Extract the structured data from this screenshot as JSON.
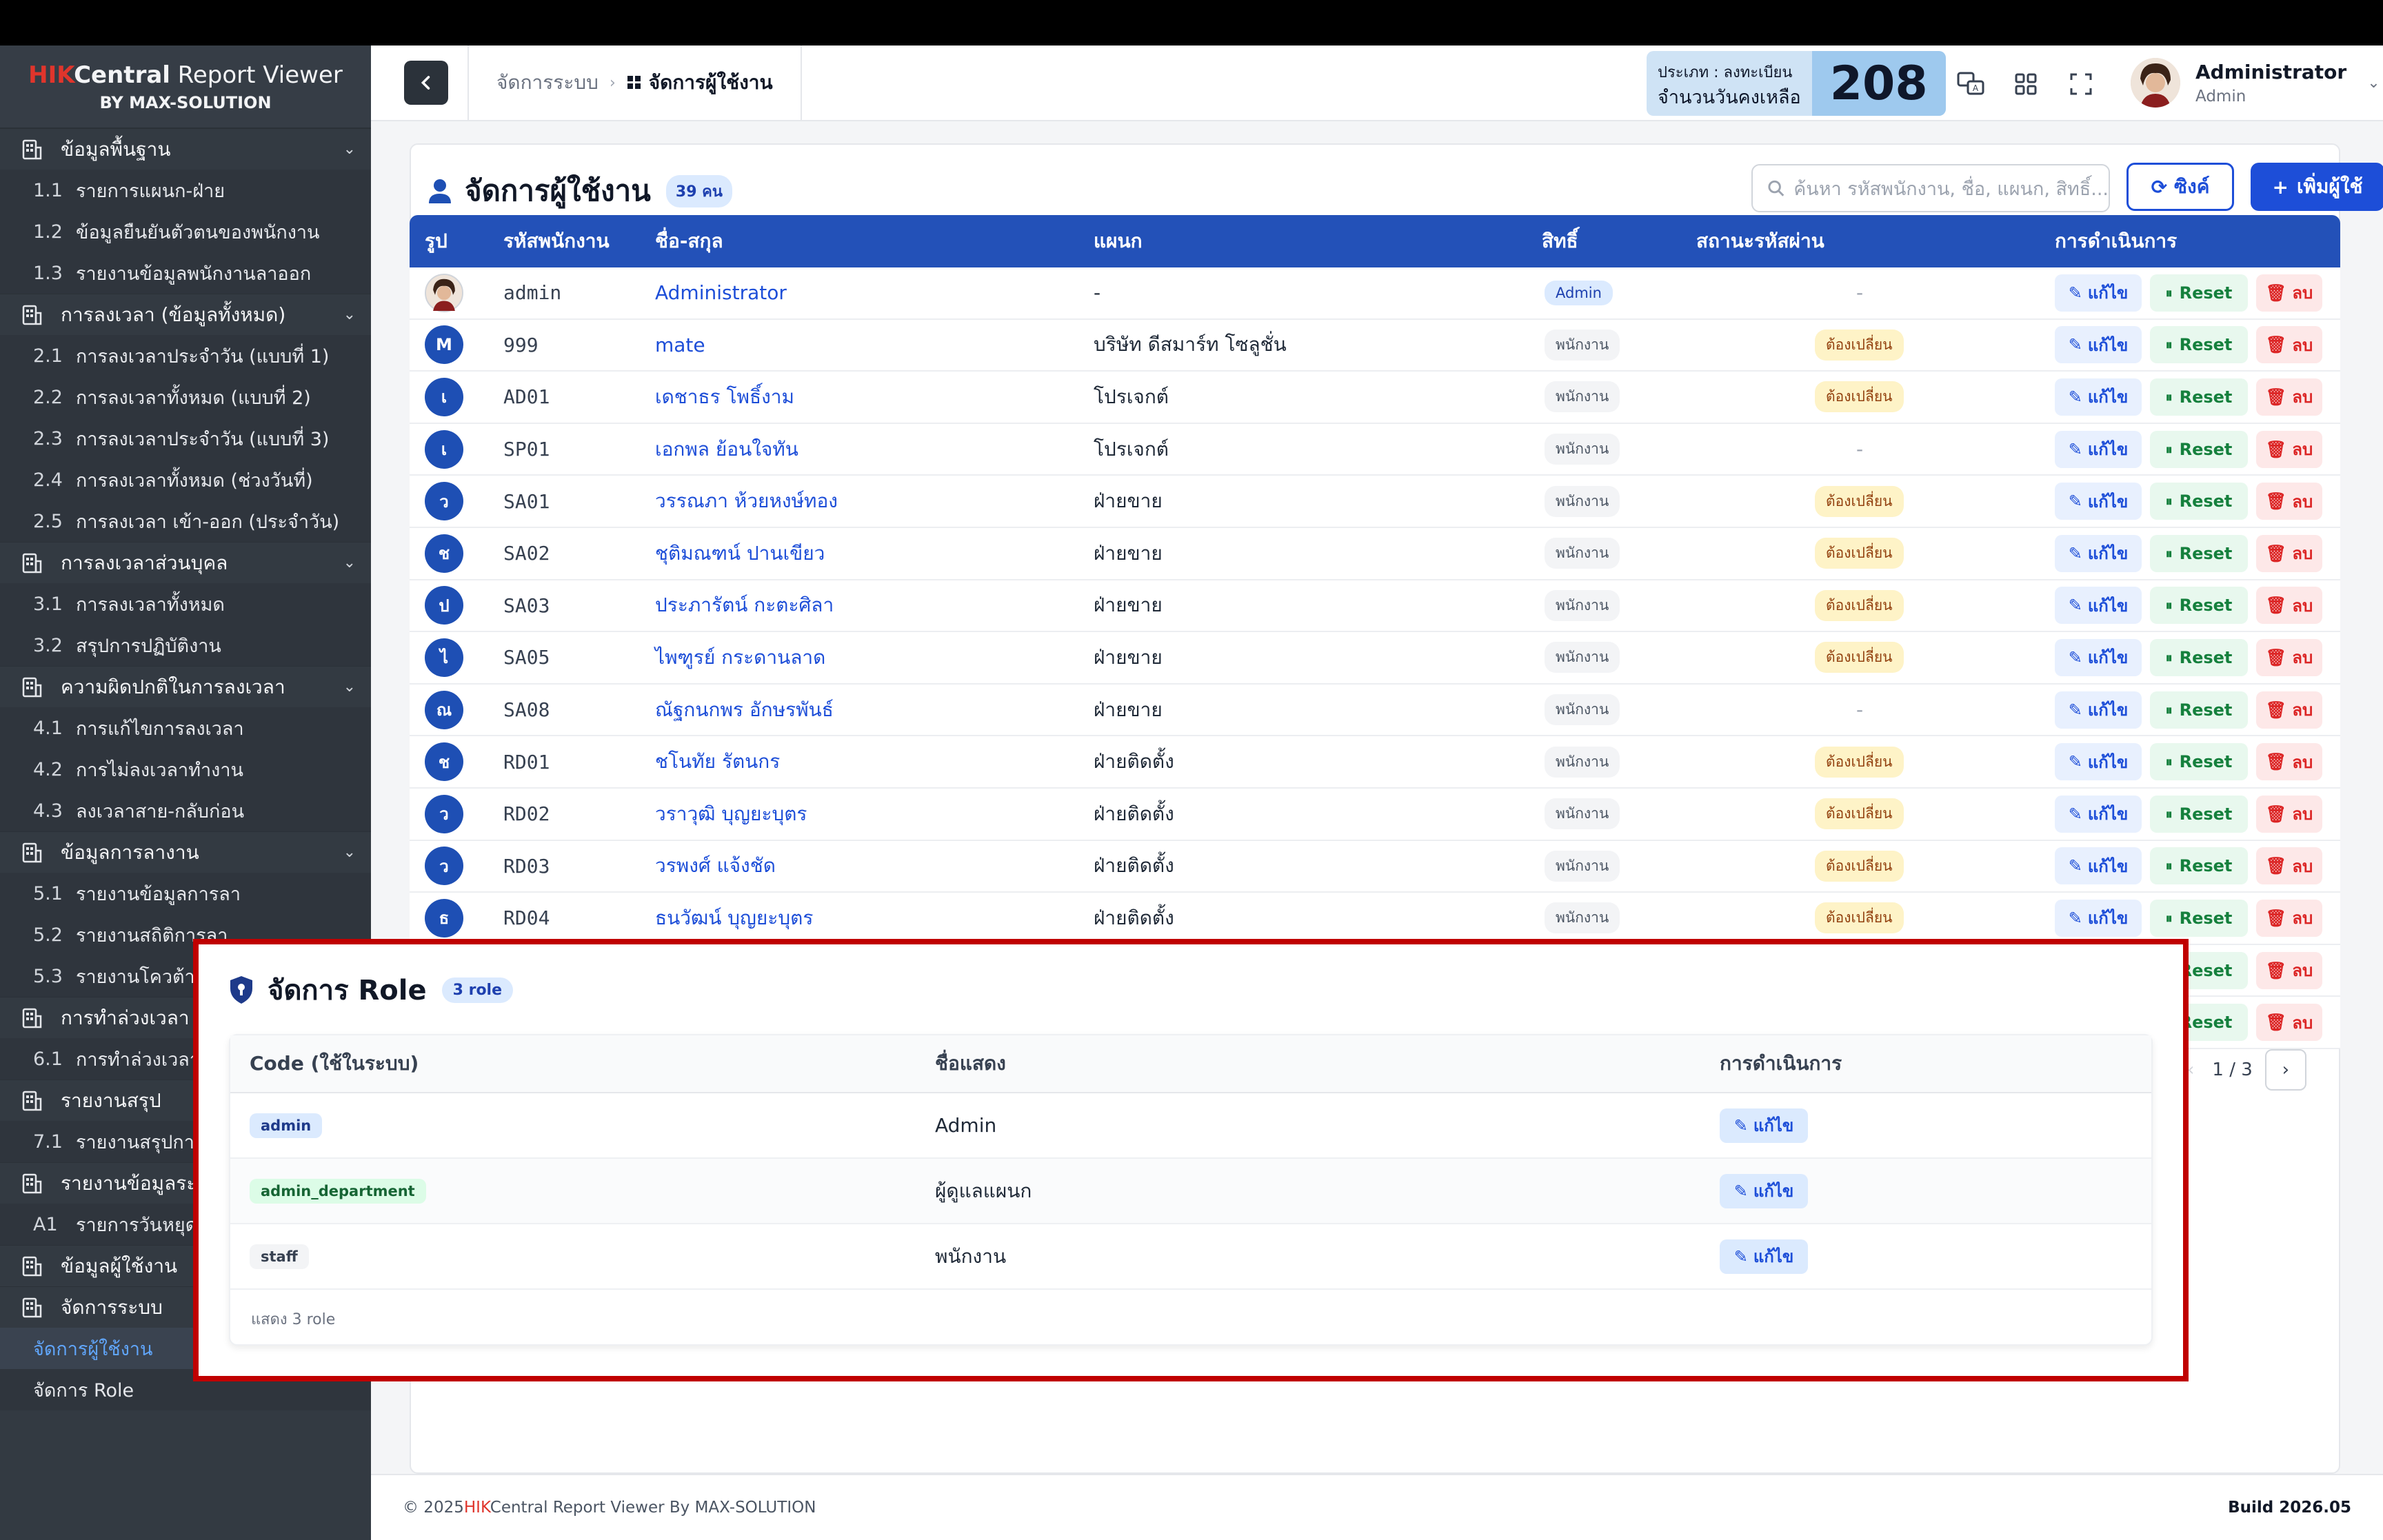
{
  "brand": {
    "hik": "HIK",
    "central": "Central",
    "rest": " Report Viewer",
    "by": "BY MAX-SOLUTION"
  },
  "sidebar": {
    "groups": [
      {
        "label": "ข้อมูลพื้นฐาน",
        "icon": "building-icon",
        "items": [
          {
            "num": "1.1",
            "label": "รายการแผนก-ฝ่าย"
          },
          {
            "num": "1.2",
            "label": "ข้อมูลยืนยันตัวตนของพนักงาน"
          },
          {
            "num": "1.3",
            "label": "รายงานข้อมูลพนักงานลาออก"
          }
        ]
      },
      {
        "label": "การลงเวลา (ข้อมูลทั้งหมด)",
        "icon": "doc-building-icon",
        "items": [
          {
            "num": "2.1",
            "label": "การลงเวลาประจำวัน (แบบที่ 1)"
          },
          {
            "num": "2.2",
            "label": "การลงเวลาทั้งหมด (แบบที่ 2)"
          },
          {
            "num": "2.3",
            "label": "การลงเวลาประจำวัน (แบบที่ 3)"
          },
          {
            "num": "2.4",
            "label": "การลงเวลาทั้งหมด (ช่วงวันที่)"
          },
          {
            "num": "2.5",
            "label": "การลงเวลา เข้า-ออก (ประจำวัน)"
          }
        ]
      },
      {
        "label": "การลงเวลาส่วนบุคล",
        "icon": "list-icon",
        "items": [
          {
            "num": "3.1",
            "label": "การลงเวลาทั้งหมด"
          },
          {
            "num": "3.2",
            "label": "สรุปการปฏิบัติงาน"
          }
        ]
      },
      {
        "label": "ความผิดปกติในการลงเวลา",
        "icon": "doc-clock-icon",
        "items": [
          {
            "num": "4.1",
            "label": "การแก้ไขการลงเวลา"
          },
          {
            "num": "4.2",
            "label": "การไม่ลงเวลาทำงาน"
          },
          {
            "num": "4.3",
            "label": "ลงเวลาสาย-กลับก่อน"
          }
        ]
      },
      {
        "label": "ข้อมูลการลางาน",
        "icon": "leave-icon",
        "items": [
          {
            "num": "5.1",
            "label": "รายงานข้อมูลการลา"
          },
          {
            "num": "5.2",
            "label": "รายงานสถิติการลา"
          },
          {
            "num": "5.3",
            "label": "รายงานโควต้าการลา"
          }
        ]
      },
      {
        "label": "การทำล่วงเวลา",
        "icon": "calendar-clock-icon",
        "items": [
          {
            "num": "6.1",
            "label": "การทำล่วงเวลา"
          }
        ]
      },
      {
        "label": "รายงานสรุป",
        "icon": "report-icon",
        "items": [
          {
            "num": "7.1",
            "label": "รายงานสรุปการทำงาน"
          }
        ]
      },
      {
        "label": "รายงานข้อมูลระบบ",
        "icon": "calendar-icon",
        "items": [
          {
            "num": "A1",
            "label": "รายการวันหยุดประจำปี"
          }
        ]
      },
      {
        "label": "ข้อมูลผู้ใช้งาน",
        "icon": "building-icon",
        "items": []
      },
      {
        "label": "จัดการระบบ",
        "icon": "shield-icon",
        "items": [
          {
            "num": "",
            "label": "จัดการผู้ใช้งาน",
            "active": true
          },
          {
            "num": "",
            "label": "จัดการ Role"
          }
        ]
      }
    ]
  },
  "header": {
    "crumb1": "จัดการระบบ",
    "crumb2": "จัดการผู้ใช้งาน",
    "license_type": "ประเภท : ลงทะเบียน",
    "license_days_label": "จำนวนวันคงเหลือ",
    "license_days": "208",
    "user_name": "Administrator",
    "user_role": "Admin"
  },
  "page": {
    "title": "จัดการผู้ใช้งาน",
    "count": "39 คน",
    "search_placeholder": "ค้นหา รหัสพนักงาน, ชื่อ, แผนก, สิทธิ์...",
    "sync_label": "ซิงค์",
    "add_label": "เพิ่มผู้ใช้"
  },
  "table": {
    "headers": [
      "รูป",
      "รหัสพนักงาน",
      "ชื่อ-สกุล",
      "แผนก",
      "สิทธิ์",
      "สถานะรหัสผ่าน",
      "การดำเนินการ"
    ],
    "edit": "แก้ไข",
    "reset": "Reset",
    "delete": "ลบ",
    "rows": [
      {
        "initial": "",
        "photo": true,
        "code": "admin",
        "name": "Administrator",
        "dept": "-",
        "role": "Admin",
        "status": "-"
      },
      {
        "initial": "M",
        "code": "999",
        "name": "mate",
        "dept": "บริษัท ดีสมาร์ท โซลูชั่น",
        "role": "พนักงาน",
        "status": "ต้องเปลี่ยน"
      },
      {
        "initial": "เ",
        "code": "AD01",
        "name": "เดชาธร โพธิ์งาม",
        "dept": "โปรเจกต์",
        "role": "พนักงาน",
        "status": "ต้องเปลี่ยน"
      },
      {
        "initial": "เ",
        "code": "SP01",
        "name": "เอกพล ย้อนใจทัน",
        "dept": "โปรเจกต์",
        "role": "พนักงาน",
        "status": "-"
      },
      {
        "initial": "ว",
        "code": "SA01",
        "name": "วรรณภา ห้วยหงษ์ทอง",
        "dept": "ฝ่ายขาย",
        "role": "พนักงาน",
        "status": "ต้องเปลี่ยน"
      },
      {
        "initial": "ช",
        "code": "SA02",
        "name": "ชุติมณฑน์ ปานเขียว",
        "dept": "ฝ่ายขาย",
        "role": "พนักงาน",
        "status": "ต้องเปลี่ยน"
      },
      {
        "initial": "ป",
        "code": "SA03",
        "name": "ประภารัตน์ กะตะศิลา",
        "dept": "ฝ่ายขาย",
        "role": "พนักงาน",
        "status": "ต้องเปลี่ยน"
      },
      {
        "initial": "ไ",
        "code": "SA05",
        "name": "ไพฑูรย์ กระดานลาด",
        "dept": "ฝ่ายขาย",
        "role": "พนักงาน",
        "status": "ต้องเปลี่ยน"
      },
      {
        "initial": "ณ",
        "code": "SA08",
        "name": "ณัฐกนกพร อักษรพันธ์",
        "dept": "ฝ่ายขาย",
        "role": "พนักงาน",
        "status": "-"
      },
      {
        "initial": "ช",
        "code": "RD01",
        "name": "ชโนทัย รัตนกร",
        "dept": "ฝ่ายติดตั้ง",
        "role": "พนักงาน",
        "status": "ต้องเปลี่ยน"
      },
      {
        "initial": "ว",
        "code": "RD02",
        "name": "วราวุฒิ บุญยะบุตร",
        "dept": "ฝ่ายติดตั้ง",
        "role": "พนักงาน",
        "status": "ต้องเปลี่ยน"
      },
      {
        "initial": "ว",
        "code": "RD03",
        "name": "วรพงศ์ แจ้งชัด",
        "dept": "ฝ่ายติดตั้ง",
        "role": "พนักงาน",
        "status": "ต้องเปลี่ยน"
      },
      {
        "initial": "ธ",
        "code": "RD04",
        "name": "ธนวัฒน์ บุญยะบุตร",
        "dept": "ฝ่ายติดตั้ง",
        "role": "พนักงาน",
        "status": "ต้องเปลี่ยน"
      },
      {
        "initial": "",
        "code": "",
        "name": "",
        "dept": "",
        "role": "",
        "status": ""
      },
      {
        "initial": "",
        "code": "",
        "name": "",
        "dept": "",
        "role": "",
        "status": ""
      }
    ],
    "page_info": "1 / 3"
  },
  "role_popup": {
    "title": "จัดการ Role",
    "count": "3 role",
    "headers": [
      "Code (ใช้ในระบบ)",
      "ชื่อแสดง",
      "การดำเนินการ"
    ],
    "rows": [
      {
        "code": "admin",
        "display": "Admin",
        "color": "blue"
      },
      {
        "code": "admin_department",
        "display": "ผู้ดูแลแผนก",
        "color": "green"
      },
      {
        "code": "staff",
        "display": "พนักงาน",
        "color": "gray"
      }
    ],
    "edit": "แก้ไข",
    "footer": "แสดง 3 role"
  },
  "footer": {
    "copy": "© 2025",
    "hik": "HIK",
    "rest": "Central Report Viewer By MAX-SOLUTION",
    "build": "Build 2026.05"
  },
  "colors": {
    "primary": "#2351b8",
    "sidebar": "#333a42",
    "highlight": "#c00000"
  }
}
